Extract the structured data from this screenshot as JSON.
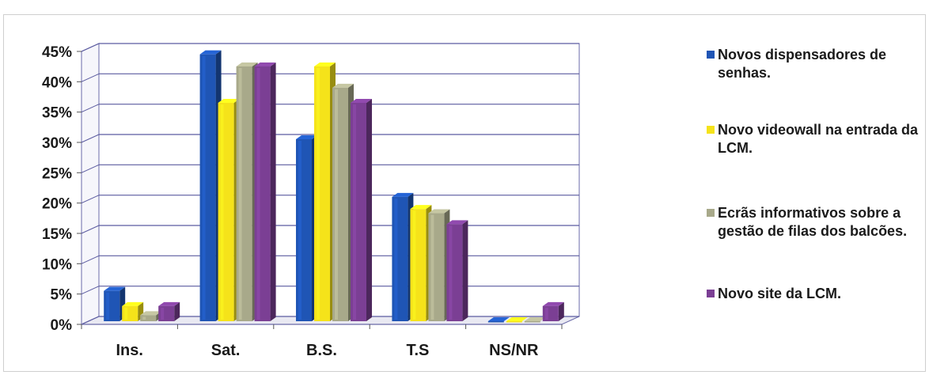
{
  "chart_data": {
    "type": "bar",
    "categories": [
      "Ins.",
      "Sat.",
      "B.S.",
      "T.S",
      "NS/NR"
    ],
    "series": [
      {
        "name": "Novos dispensadores de senhas.",
        "color": "#1f55b5",
        "values": [
          5,
          44,
          30,
          20.5,
          0
        ]
      },
      {
        "name": "Novo videowall na entrada da LCM.",
        "color": "#f5e31a",
        "values": [
          2.5,
          36,
          42,
          18.5,
          0
        ]
      },
      {
        "name": "Ecrãs informativos sobre a gestão de filas dos balcões.",
        "color": "#a8a98a",
        "values": [
          1,
          42,
          38.5,
          17.8,
          0
        ]
      },
      {
        "name": "Novo site da LCM.",
        "color": "#7b3f94",
        "values": [
          2.5,
          42,
          36,
          16,
          2.5
        ]
      }
    ],
    "y_ticks": [
      "0%",
      "5%",
      "10%",
      "15%",
      "20%",
      "25%",
      "30%",
      "35%",
      "40%",
      "45%"
    ],
    "ylim": [
      0,
      45
    ],
    "grid": true,
    "legend_position": "right",
    "title": "",
    "xlabel": "",
    "ylabel": ""
  }
}
